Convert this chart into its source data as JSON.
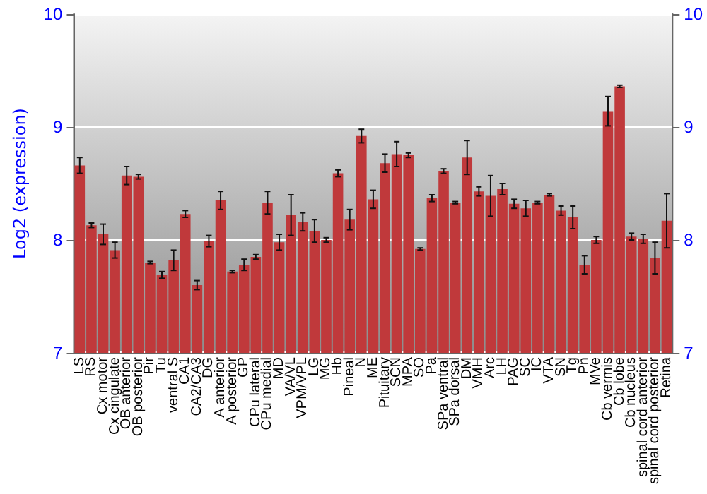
{
  "chart_data": {
    "type": "bar",
    "ylabel": "Log2 (expression)",
    "categories": [
      "LS",
      "RS",
      "Cx motor",
      "Cx cingulate",
      "OB anterior",
      "OB posterior",
      "Pir",
      "Tu",
      "ventral S",
      "CA1",
      "CA2/CA3",
      "DG",
      "A anterior",
      "A posterior",
      "GP",
      "CPu lateral",
      "CPu medial",
      "MD",
      "VA/VL",
      "VPM/VPL",
      "LG",
      "MG",
      "Hb",
      "Pineal",
      "N",
      "ME",
      "Pituitary",
      "SCN",
      "MPA",
      "SO",
      "Pa",
      "SPa ventral",
      "SPa dorsal",
      "DM",
      "VMH",
      "Arc",
      "LH",
      "PAG",
      "SC",
      "IC",
      "VTA",
      "SN",
      "Tg",
      "Pn",
      "MVe",
      "Cb vermis",
      "Cb lobe",
      "Cb nucleus",
      "spinal cord anterior",
      "spinal cord posterior",
      "Retina"
    ],
    "values": [
      8.66,
      8.13,
      8.05,
      7.91,
      8.57,
      8.56,
      7.8,
      7.69,
      7.82,
      8.23,
      7.6,
      7.99,
      8.35,
      7.72,
      7.78,
      7.85,
      8.33,
      7.98,
      8.22,
      8.16,
      8.08,
      8.0,
      8.59,
      8.18,
      8.92,
      8.36,
      8.68,
      8.76,
      8.75,
      7.92,
      8.37,
      8.61,
      8.33,
      8.73,
      8.43,
      8.39,
      8.45,
      8.32,
      8.28,
      8.33,
      8.4,
      8.26,
      8.2,
      7.78,
      8.0,
      9.14,
      9.36,
      8.03,
      8.01,
      7.84,
      8.17
    ],
    "errors": [
      0.07,
      0.02,
      0.09,
      0.07,
      0.08,
      0.02,
      0.01,
      0.03,
      0.09,
      0.03,
      0.04,
      0.05,
      0.08,
      0.01,
      0.05,
      0.02,
      0.1,
      0.07,
      0.18,
      0.08,
      0.1,
      0.02,
      0.03,
      0.09,
      0.06,
      0.08,
      0.08,
      0.11,
      0.02,
      0.01,
      0.03,
      0.02,
      0.01,
      0.15,
      0.04,
      0.18,
      0.05,
      0.04,
      0.07,
      0.01,
      0.01,
      0.04,
      0.1,
      0.08,
      0.03,
      0.13,
      0.01,
      0.03,
      0.04,
      0.14,
      0.24
    ],
    "color": "#c0393b",
    "ylim": [
      7,
      10
    ],
    "yticks": [
      7,
      8,
      9,
      10
    ],
    "y2lim": [
      7,
      10
    ],
    "y2ticks": [
      7,
      8,
      9,
      10
    ],
    "grid": "y"
  }
}
